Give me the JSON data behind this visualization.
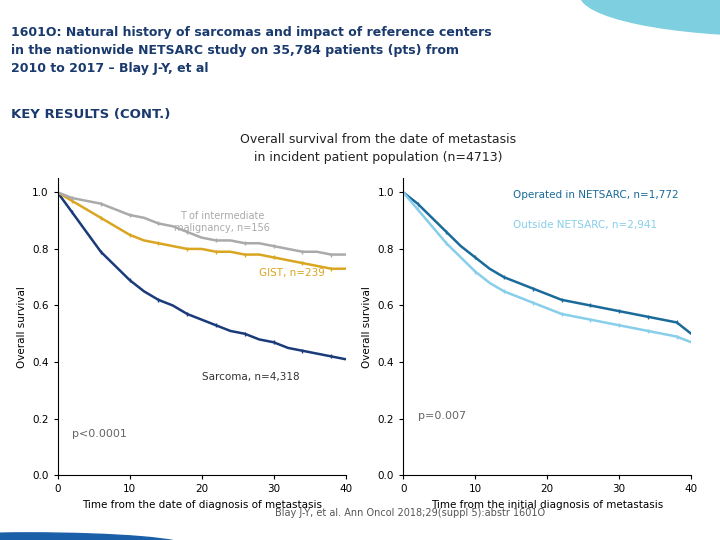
{
  "title_text": "1601O: Natural history of sarcomas and impact of reference centers\nin the nationwide NETSARC study on 35,784 patients (pts) from\n2010 to 2017 – Blay J-Y, et al",
  "key_results_label": "KEY RESULTS (CONT.)",
  "chart_title": "Overall survival from the date of metastasis\nin incident patient population (n=4713)",
  "header_bg_color": "#7ECFDF",
  "header_text_color": "#1a3a6e",
  "background_color": "#ffffff",
  "footer_circle_color": "#1a5fa8",
  "footer_text": "Blay J-Y, et al. Ann Oncol 2018;29(suppl 5):abstr 1601O",
  "left_plot": {
    "xlabel": "Time from the date of diagnosis of metastasis",
    "ylabel": "Overall survival",
    "yticks": [
      0.0,
      0.2,
      0.4,
      0.6,
      0.8,
      1.0
    ],
    "xticks": [
      0,
      10,
      20,
      30,
      40
    ],
    "pvalue": "p<0.0001",
    "curves": {
      "sarcoma": {
        "label": "Sarcoma, n=4,318",
        "color": "#1a3a7a",
        "x": [
          0,
          2,
          4,
          6,
          8,
          10,
          12,
          14,
          16,
          18,
          20,
          22,
          24,
          26,
          28,
          30,
          32,
          34,
          36,
          38,
          40
        ],
        "y": [
          1.0,
          0.93,
          0.86,
          0.79,
          0.74,
          0.69,
          0.65,
          0.62,
          0.6,
          0.57,
          0.55,
          0.53,
          0.51,
          0.5,
          0.48,
          0.47,
          0.45,
          0.44,
          0.43,
          0.42,
          0.41
        ]
      },
      "gist": {
        "label": "GIST, n=239",
        "color": "#DAA520",
        "x": [
          0,
          2,
          4,
          6,
          8,
          10,
          12,
          14,
          16,
          18,
          20,
          22,
          24,
          26,
          28,
          30,
          32,
          34,
          36,
          38,
          40
        ],
        "y": [
          1.0,
          0.97,
          0.94,
          0.91,
          0.88,
          0.85,
          0.83,
          0.82,
          0.81,
          0.8,
          0.8,
          0.79,
          0.79,
          0.78,
          0.78,
          0.77,
          0.76,
          0.75,
          0.74,
          0.73,
          0.73
        ]
      },
      "intermediate": {
        "label": "T of intermediate\nmalignancy, n=156",
        "color": "#aaaaaa",
        "x": [
          0,
          2,
          4,
          6,
          8,
          10,
          12,
          14,
          16,
          18,
          20,
          22,
          24,
          26,
          28,
          30,
          32,
          34,
          36,
          38,
          40
        ],
        "y": [
          1.0,
          0.98,
          0.97,
          0.96,
          0.94,
          0.92,
          0.91,
          0.89,
          0.88,
          0.86,
          0.84,
          0.83,
          0.83,
          0.82,
          0.82,
          0.81,
          0.8,
          0.79,
          0.79,
          0.78,
          0.78
        ]
      }
    }
  },
  "right_plot": {
    "xlabel": "Time from the initial diagnosis of metastasis",
    "ylabel": "Overall survival",
    "yticks": [
      0.0,
      0.2,
      0.4,
      0.6,
      0.8,
      1.0
    ],
    "xticks": [
      0,
      10,
      20,
      30,
      40
    ],
    "pvalue": "p=0.007",
    "curves": {
      "netsarc": {
        "label": "Operated in NETSARC, n=1,772",
        "color": "#1a6a9a",
        "x": [
          0,
          2,
          4,
          6,
          8,
          10,
          12,
          14,
          16,
          18,
          20,
          22,
          24,
          26,
          28,
          30,
          32,
          34,
          36,
          38,
          40
        ],
        "y": [
          1.0,
          0.96,
          0.91,
          0.86,
          0.81,
          0.77,
          0.73,
          0.7,
          0.68,
          0.66,
          0.64,
          0.62,
          0.61,
          0.6,
          0.59,
          0.58,
          0.57,
          0.56,
          0.55,
          0.54,
          0.5
        ]
      },
      "outside": {
        "label": "Outside NETSARC, n=2,941",
        "color": "#87CEEB",
        "x": [
          0,
          2,
          4,
          6,
          8,
          10,
          12,
          14,
          16,
          18,
          20,
          22,
          24,
          26,
          28,
          30,
          32,
          34,
          36,
          38,
          40
        ],
        "y": [
          1.0,
          0.94,
          0.88,
          0.82,
          0.77,
          0.72,
          0.68,
          0.65,
          0.63,
          0.61,
          0.59,
          0.57,
          0.56,
          0.55,
          0.54,
          0.53,
          0.52,
          0.51,
          0.5,
          0.49,
          0.47
        ]
      }
    }
  }
}
